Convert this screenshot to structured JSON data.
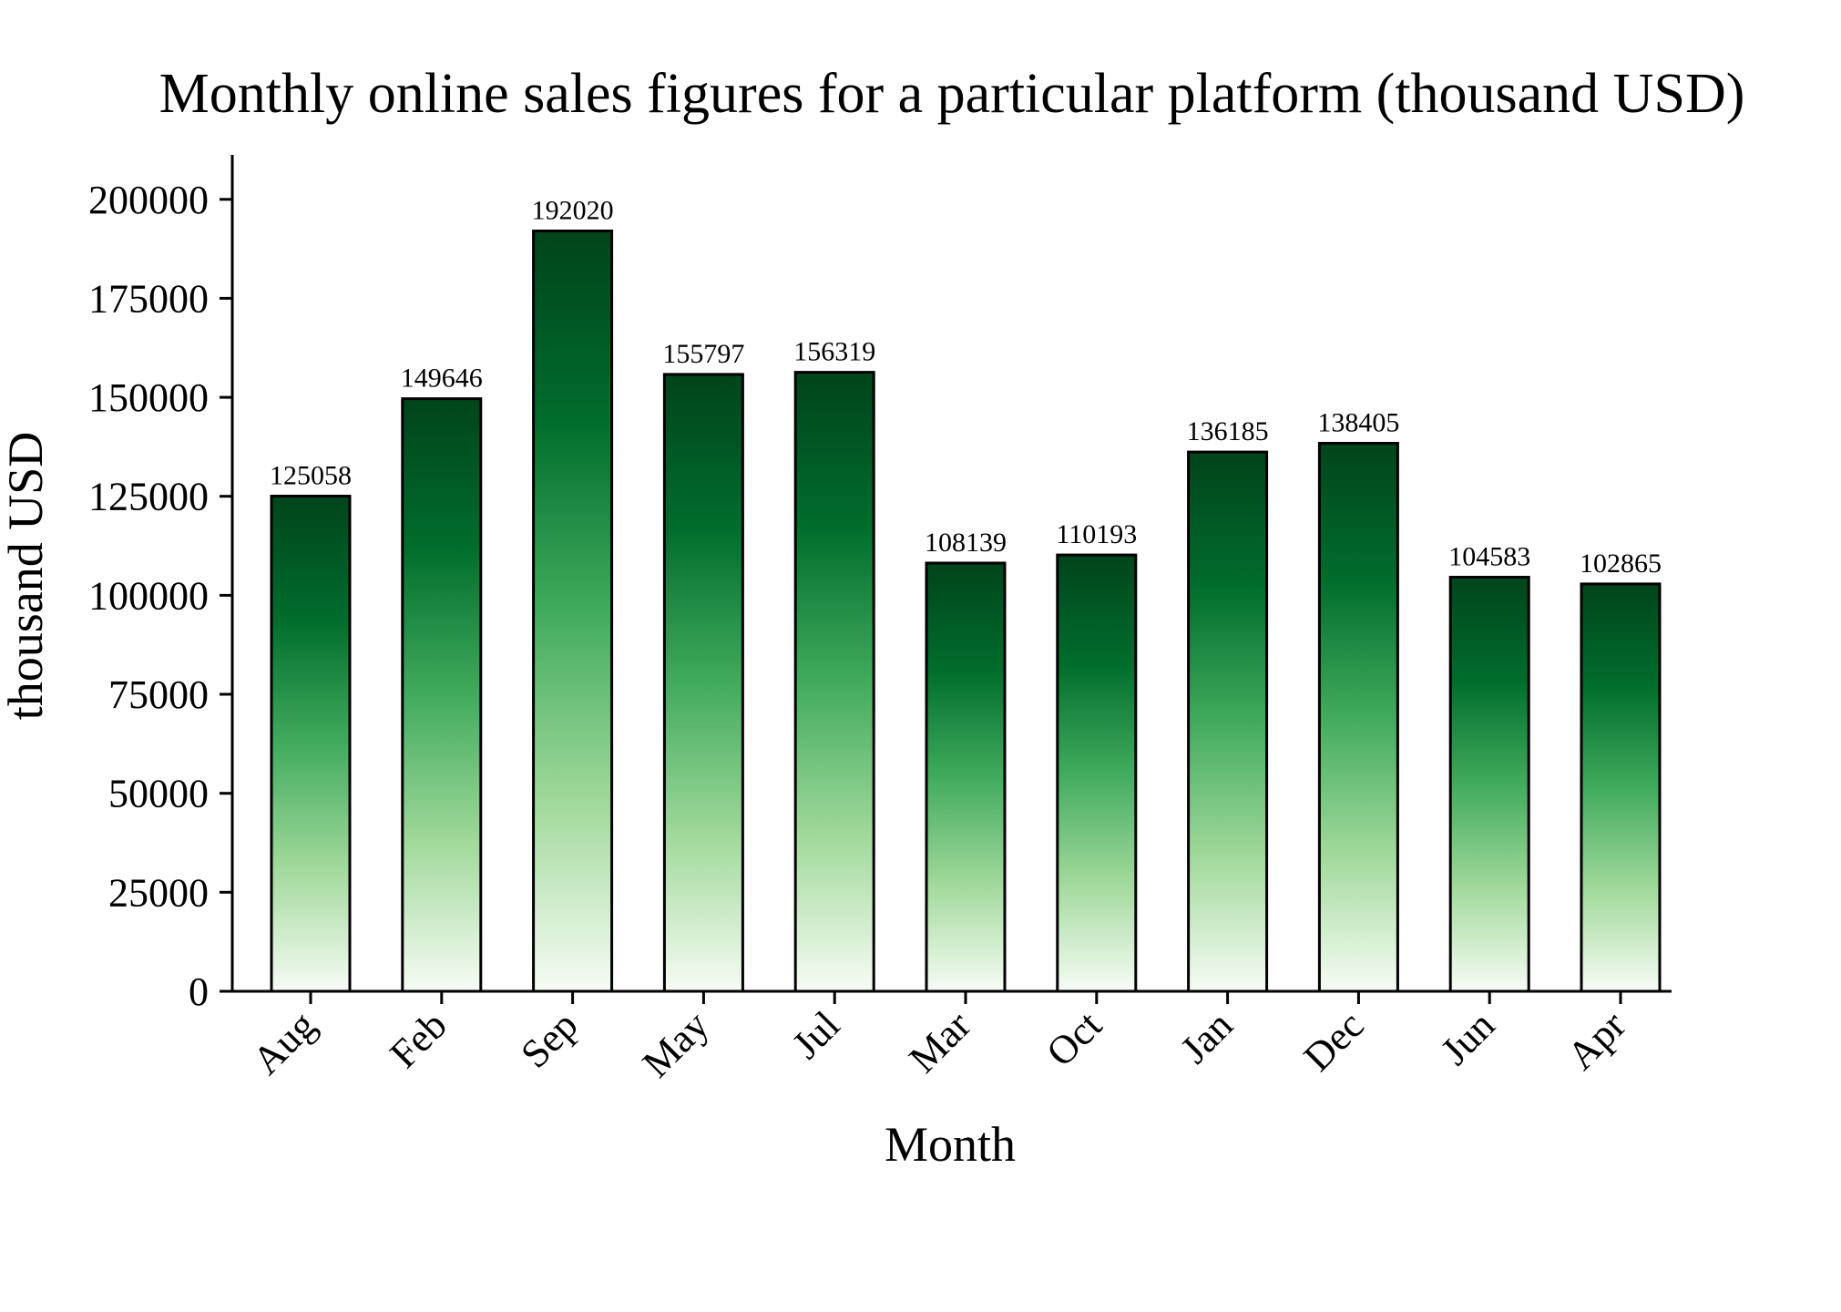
{
  "chart_data": {
    "type": "bar",
    "title": "Monthly online sales figures for a particular platform (thousand USD)",
    "xlabel": "Month",
    "ylabel": "thousand USD",
    "categories": [
      "Aug",
      "Feb",
      "Sep",
      "May",
      "Jul",
      "Mar",
      "Oct",
      "Jan",
      "Dec",
      "Jun",
      "Apr"
    ],
    "values": [
      125058,
      149646,
      192020,
      155797,
      156319,
      108139,
      110193,
      136185,
      138405,
      104583,
      102865
    ],
    "data_labels": [
      "125058",
      "149646",
      "192020",
      "155797",
      "156319",
      "108139",
      "110193",
      "136185",
      "138405",
      "104583",
      "102865"
    ],
    "ylim": [
      0,
      211222
    ],
    "yticks": [
      0,
      25000,
      50000,
      75000,
      100000,
      125000,
      150000,
      175000,
      200000
    ],
    "ytick_labels": [
      "0",
      "25000",
      "50000",
      "75000",
      "100000",
      "125000",
      "150000",
      "175000",
      "200000"
    ],
    "grid": false,
    "legend": "none",
    "colors": {
      "gradient_top": "#00441b",
      "gradient_upper": "#006d2c",
      "gradient_mid": "#41ab5d",
      "gradient_lower": "#a1d99b",
      "gradient_bottom": "#f7fcf5",
      "edge": "#000000"
    }
  }
}
